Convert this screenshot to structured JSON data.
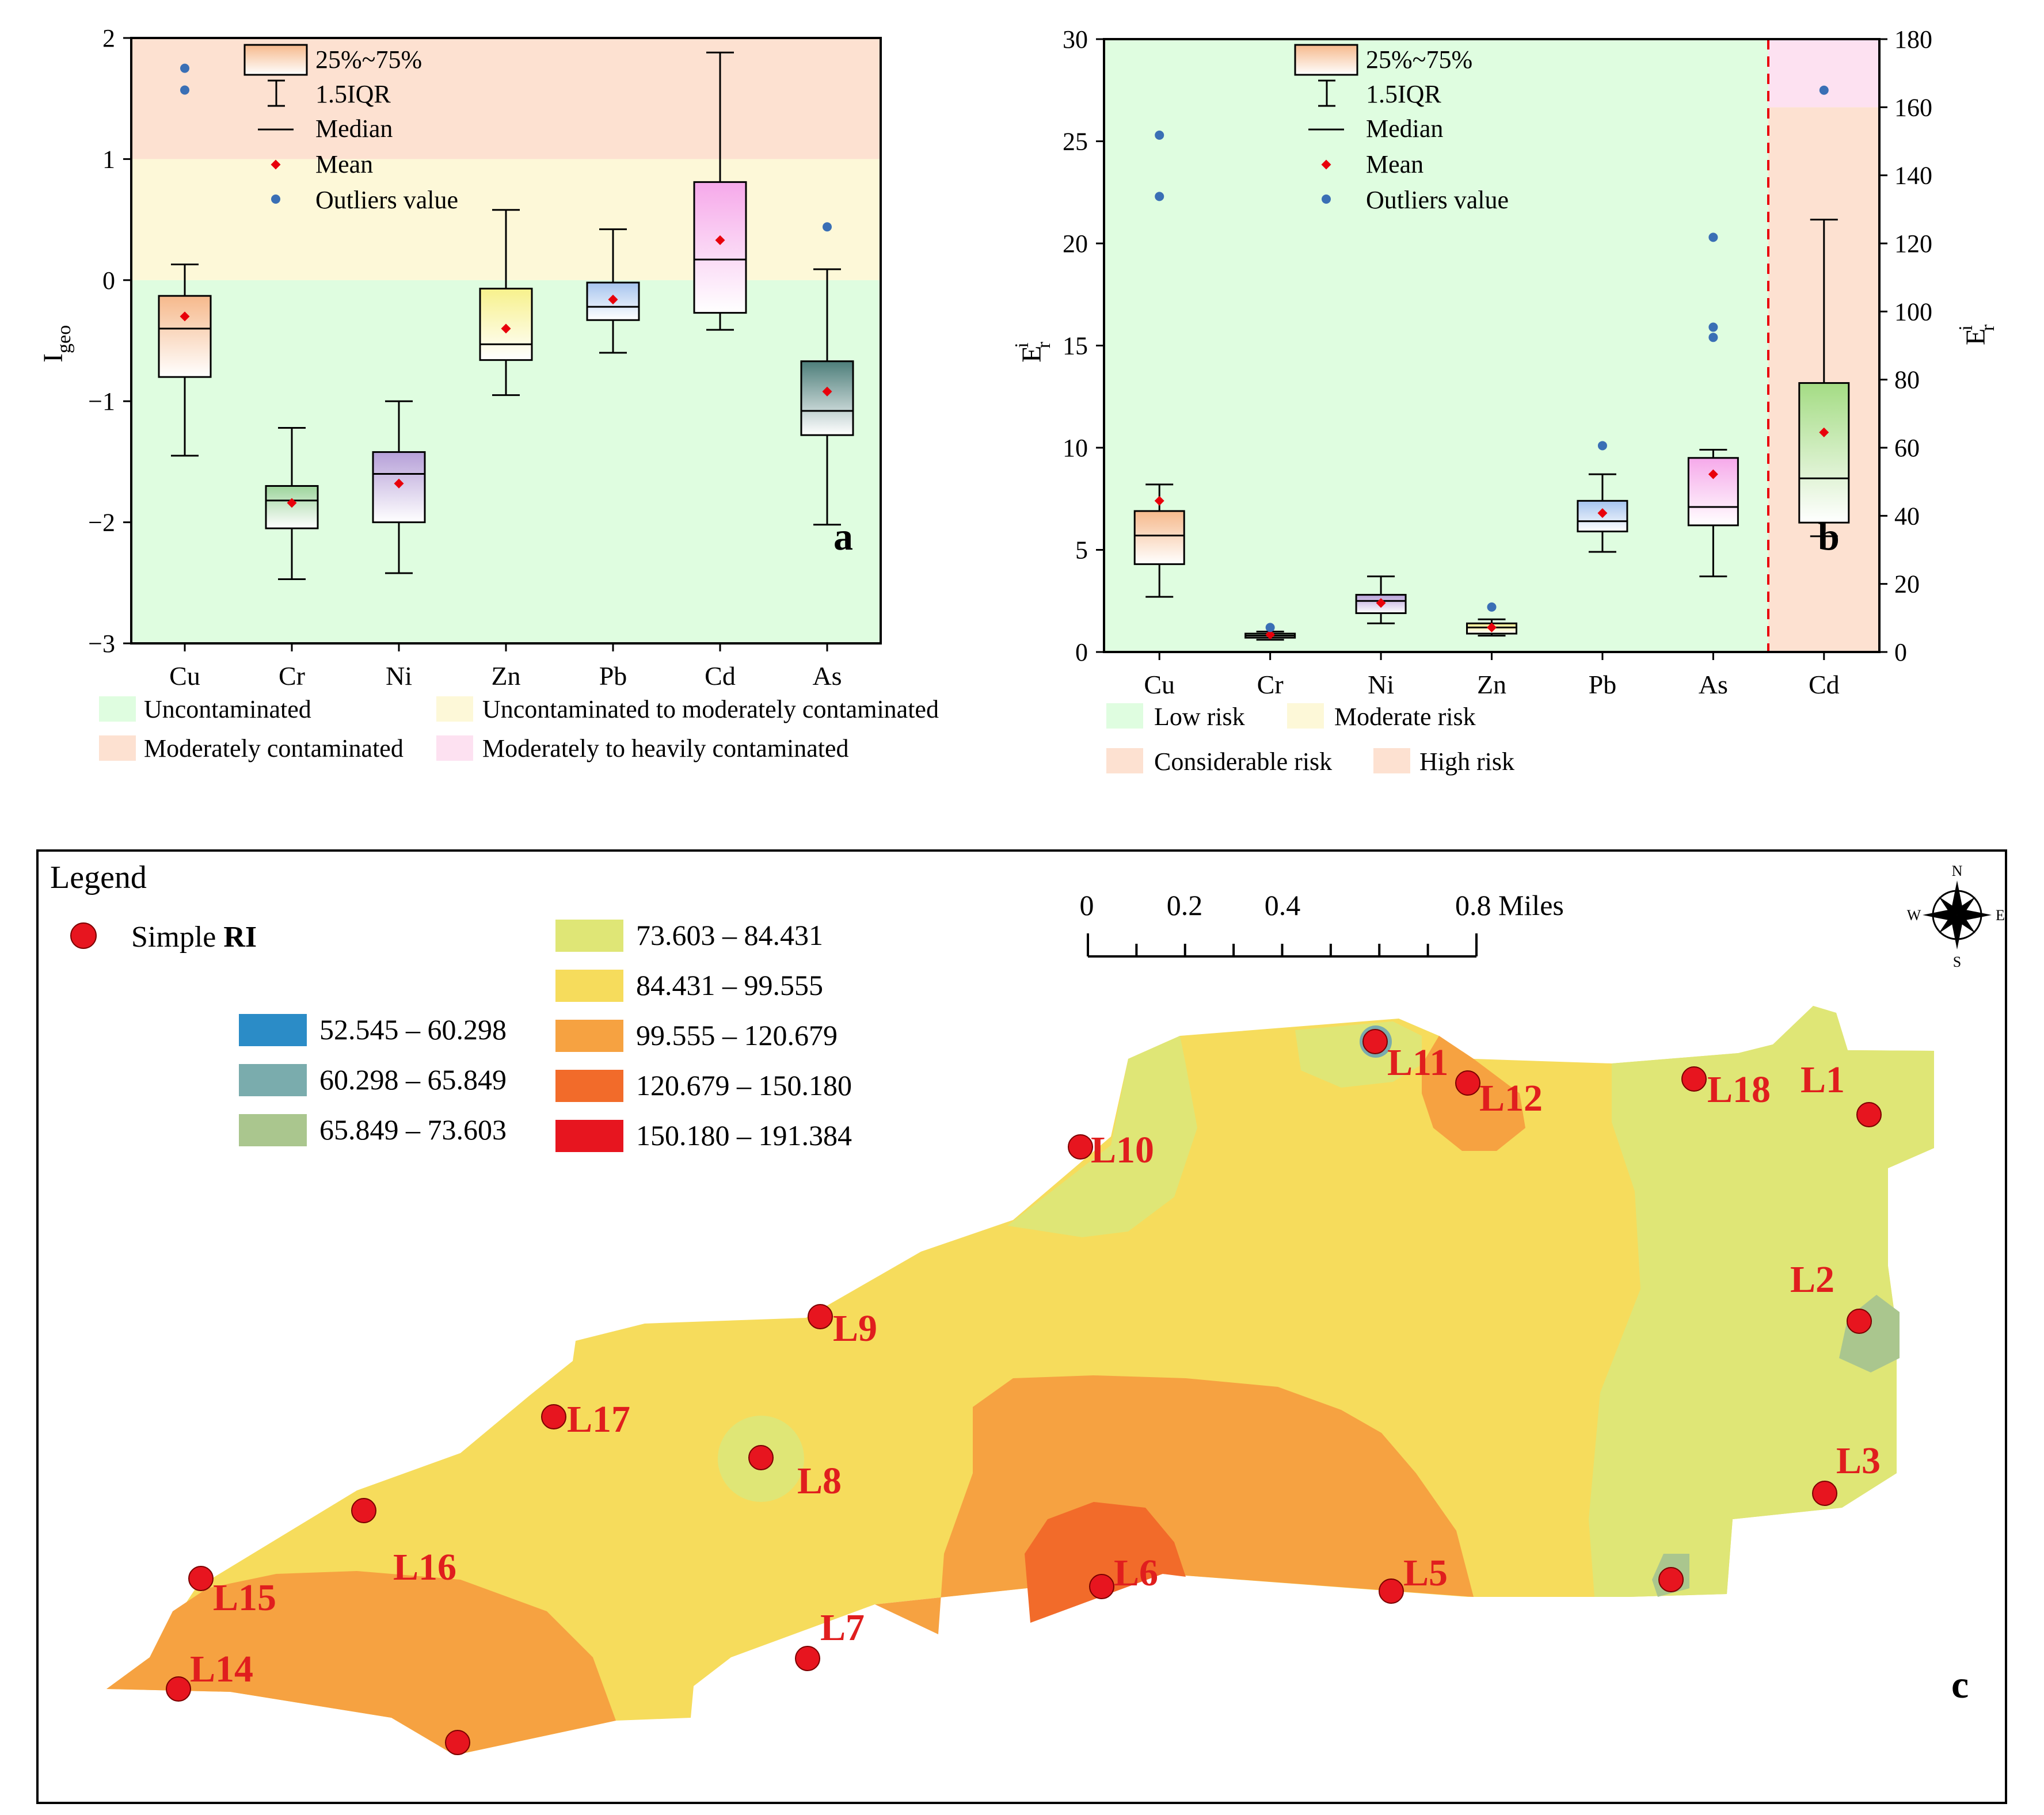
{
  "panel_labels": {
    "a": "a",
    "b": "b",
    "c": "c"
  },
  "colors": {
    "uncontaminated": "#dffde0",
    "unc_to_moderate": "#fdf8d8",
    "moderately": "#fde1d1",
    "mod_to_heavy": "#fde1f1",
    "mean_marker": "#e8000b",
    "outlier_marker": "#3a6fb5",
    "dashed_divider": "#e8000b"
  },
  "chart_data": [
    {
      "id": "a",
      "type": "box",
      "ylabel": "I",
      "ylabel_sub": "geo",
      "categories": [
        "Cu",
        "Cr",
        "Ni",
        "Zn",
        "Pb",
        "Cd",
        "As"
      ],
      "ylim": [
        -3,
        2
      ],
      "yticks": [
        -3,
        -2,
        -1,
        0,
        1,
        2
      ],
      "ytick_labels": [
        "−3",
        "−2",
        "−1",
        "0",
        "1",
        "2"
      ],
      "boxes": [
        {
          "name": "Cu",
          "whisker_low": -1.45,
          "q1": -0.8,
          "median": -0.4,
          "q3": -0.13,
          "whisker_high": 0.13,
          "mean": -0.3,
          "outliers": [
            1.57,
            1.75
          ],
          "color": "#f6b98c"
        },
        {
          "name": "Cr",
          "whisker_low": -2.47,
          "q1": -2.05,
          "median": -1.82,
          "q3": -1.7,
          "whisker_high": -1.22,
          "mean": -1.84,
          "outliers": [],
          "color": "#9dd49c"
        },
        {
          "name": "Ni",
          "whisker_low": -2.42,
          "q1": -2.0,
          "median": -1.6,
          "q3": -1.42,
          "whisker_high": -1.0,
          "mean": -1.68,
          "outliers": [],
          "color": "#b6a0d8"
        },
        {
          "name": "Zn",
          "whisker_low": -0.95,
          "q1": -0.66,
          "median": -0.53,
          "q3": -0.07,
          "whisker_high": 0.58,
          "mean": -0.4,
          "outliers": [],
          "color": "#f7f18c"
        },
        {
          "name": "Pb",
          "whisker_low": -0.6,
          "q1": -0.33,
          "median": -0.22,
          "q3": -0.02,
          "whisker_high": 0.42,
          "mean": -0.16,
          "outliers": [],
          "color": "#a6c4ee"
        },
        {
          "name": "Cd",
          "whisker_low": -0.41,
          "q1": -0.27,
          "median": 0.17,
          "q3": 0.81,
          "whisker_high": 1.88,
          "mean": 0.33,
          "outliers": [],
          "color": "#f6a9ea"
        },
        {
          "name": "As",
          "whisker_low": -2.02,
          "q1": -1.28,
          "median": -1.08,
          "q3": -0.67,
          "whisker_high": 0.09,
          "mean": -0.92,
          "outliers": [
            0.44
          ],
          "color": "#4d7e7a"
        }
      ],
      "bands": [
        {
          "from": -3,
          "to": 0,
          "color_key": "uncontaminated"
        },
        {
          "from": 0,
          "to": 1,
          "color_key": "unc_to_moderate"
        },
        {
          "from": 1,
          "to": 2,
          "color_key": "moderately"
        }
      ],
      "legend_inside": [
        "25%~75%",
        "1.5IQR",
        "Median",
        "Mean",
        "Outliers value"
      ],
      "legend_below": [
        {
          "label": "Uncontaminated",
          "color_key": "uncontaminated"
        },
        {
          "label": "Uncontaminated to moderately contaminated",
          "color_key": "unc_to_moderate"
        },
        {
          "label": "Moderately contaminated",
          "color_key": "moderately"
        },
        {
          "label": "Moderately to heavily contaminated",
          "color_key": "mod_to_heavy"
        }
      ]
    },
    {
      "id": "b",
      "type": "box",
      "ylabel": "E",
      "ylabel_sub": "r",
      "ylabel_sup": "i",
      "categories": [
        "Cu",
        "Cr",
        "Ni",
        "Zn",
        "Pb",
        "As",
        "Cd"
      ],
      "ylim": [
        0,
        30
      ],
      "yticks": [
        0,
        5,
        10,
        15,
        20,
        25,
        30
      ],
      "y2lim": [
        0,
        180
      ],
      "y2ticks": [
        0,
        20,
        40,
        60,
        80,
        100,
        120,
        140,
        160,
        180
      ],
      "boxes": [
        {
          "name": "Cu",
          "axis": "left",
          "whisker_low": 2.7,
          "q1": 4.3,
          "median": 5.7,
          "q3": 6.9,
          "whisker_high": 8.2,
          "mean": 7.4,
          "outliers": [
            22.3,
            25.3
          ],
          "color": "#f6b98c"
        },
        {
          "name": "Cr",
          "axis": "left",
          "whisker_low": 0.6,
          "q1": 0.7,
          "median": 0.8,
          "q3": 0.9,
          "whisker_high": 1.0,
          "mean": 0.85,
          "outliers": [
            1.2
          ],
          "color": "#9dd49c"
        },
        {
          "name": "Ni",
          "axis": "left",
          "whisker_low": 1.4,
          "q1": 1.9,
          "median": 2.5,
          "q3": 2.8,
          "whisker_high": 3.7,
          "mean": 2.4,
          "outliers": [],
          "color": "#b6a0d8"
        },
        {
          "name": "Zn",
          "axis": "left",
          "whisker_low": 0.8,
          "q1": 0.9,
          "median": 1.2,
          "q3": 1.4,
          "whisker_high": 1.6,
          "mean": 1.2,
          "outliers": [
            2.2
          ],
          "color": "#f7f18c"
        },
        {
          "name": "Pb",
          "axis": "left",
          "whisker_low": 4.9,
          "q1": 5.9,
          "median": 6.4,
          "q3": 7.4,
          "whisker_high": 8.7,
          "mean": 6.8,
          "outliers": [
            10.1
          ],
          "color": "#a6c4ee"
        },
        {
          "name": "As",
          "axis": "left",
          "whisker_low": 3.7,
          "q1": 6.2,
          "median": 7.1,
          "q3": 9.5,
          "whisker_high": 9.9,
          "mean": 8.7,
          "outliers": [
            15.4,
            15.9,
            20.3
          ],
          "color": "#f6a9ea"
        },
        {
          "name": "Cd",
          "axis": "right",
          "whisker_low": 34,
          "q1": 38,
          "median": 51,
          "q3": 79,
          "whisker_high": 127,
          "mean": 64.5,
          "outliers": [
            165
          ],
          "color": "#a4dc84"
        }
      ],
      "cd_bands": [
        {
          "from": 0,
          "to": 160,
          "color_key": "moderately"
        },
        {
          "from": 160,
          "to": 180,
          "color_key": "mod_to_heavy"
        }
      ],
      "legend_inside": [
        "25%~75%",
        "1.5IQR",
        "Median",
        "Mean",
        "Outliers value"
      ],
      "legend_below": [
        {
          "label": "Low risk",
          "color": "#dffde0"
        },
        {
          "label": "Moderate risk",
          "color": "#fdf8d8"
        },
        {
          "label": "Considerable risk",
          "color": "#fde1d1"
        },
        {
          "label": "High risk",
          "color": "#fde1d1"
        }
      ]
    }
  ],
  "map": {
    "legend_title": "Legend",
    "point_legend_label": "Simple ",
    "point_legend_bold": "RI",
    "classes": [
      {
        "label": "52.545 – 60.298",
        "color": "#2b8cc7"
      },
      {
        "label": "60.298 – 65.849",
        "color": "#7aacad"
      },
      {
        "label": "65.849 – 73.603",
        "color": "#aac68e"
      },
      {
        "label": "73.603 – 84.431",
        "color": "#dfe676"
      },
      {
        "label": "84.431 – 99.555",
        "color": "#f6dc5c"
      },
      {
        "label": "99.555 – 120.679",
        "color": "#f6a241"
      },
      {
        "label": "120.679 – 150.180",
        "color": "#f26b2a"
      },
      {
        "label": "150.180 – 191.384",
        "color": "#e7151f"
      }
    ],
    "scale_labels": [
      "0",
      "0.2",
      "0.4",
      "0.8 Miles"
    ],
    "compass": {
      "n": "N",
      "s": "S",
      "e": "E",
      "w": "W"
    },
    "sites": [
      "L1",
      "L2",
      "L3",
      "L5",
      "L6",
      "L7",
      "L8",
      "L9",
      "L10",
      "L11",
      "L12",
      "L14",
      "L15",
      "L16",
      "L17",
      "L18"
    ]
  }
}
